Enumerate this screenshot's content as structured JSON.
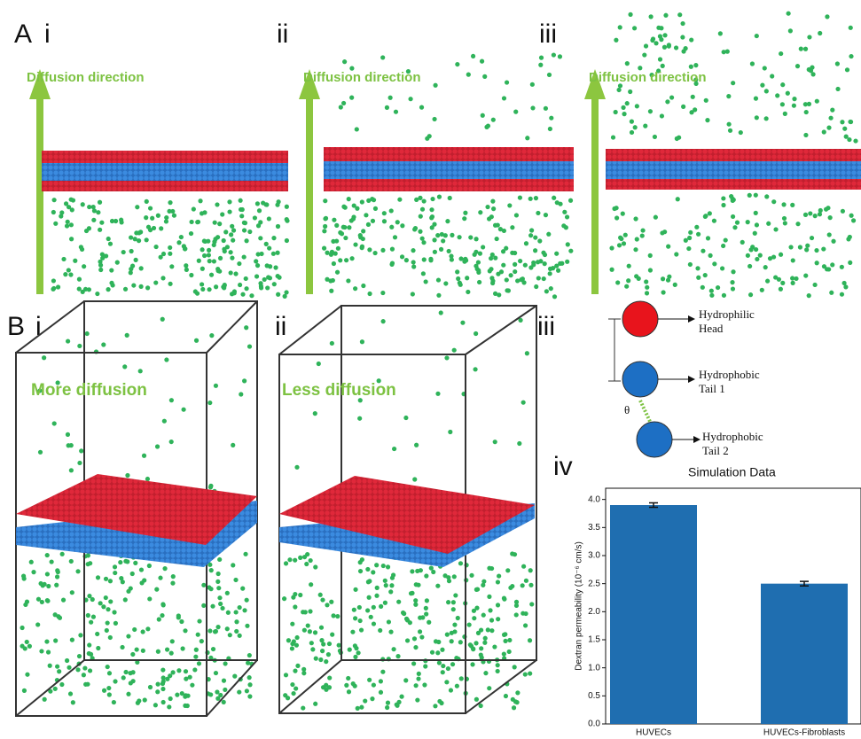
{
  "panel_a": {
    "letter": "A",
    "subs": [
      "i",
      "ii",
      "iii"
    ],
    "arrow_labels": [
      "Diffusion direction",
      "Diffusion direction",
      "Diffusion direction"
    ]
  },
  "panel_b": {
    "letter": "B",
    "subs": [
      "i",
      "ii",
      "iii",
      "iv"
    ],
    "labels": [
      "More diffusion",
      "Less diffusion"
    ]
  },
  "model": {
    "nodes": [
      [
        "Hydrophilic",
        "Head"
      ],
      [
        "Hydrophobic",
        "Tail 1"
      ],
      [
        "Hydrophobic",
        "Tail 2"
      ]
    ],
    "angle": "θ",
    "caption": "Simulation Data"
  },
  "chart_data": {
    "type": "bar",
    "y_label": "Dextran permeability (10⁻⁶ cm/s)",
    "categories": [
      "HUVECs",
      "HUVECs-Fibroblasts"
    ],
    "values": [
      3.9,
      2.5
    ],
    "errors": [
      0.04,
      0.04
    ],
    "color": "#1f6eb0",
    "ylim": [
      0,
      4.2
    ],
    "yticks": [
      {
        "value": 0,
        "label": "0.0"
      },
      0.5,
      {
        "value": 1,
        "label": "1.0"
      },
      1.5,
      {
        "value": 2,
        "label": "2.0"
      },
      2.5,
      {
        "value": 3,
        "label": "3.0"
      },
      3.5,
      {
        "value": 4,
        "label": "4.0"
      }
    ]
  }
}
